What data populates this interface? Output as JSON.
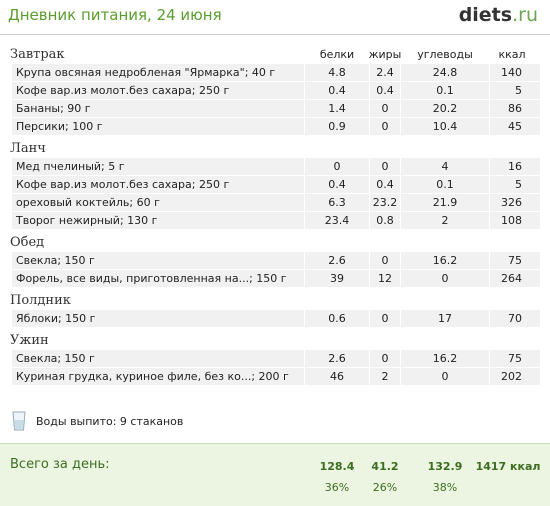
{
  "header": {
    "title": "Дневник питания, 24 июня",
    "logo_main": "diets",
    "logo_suffix": ".ru"
  },
  "columns": [
    "белки",
    "жиры",
    "углеводы",
    "ккал"
  ],
  "meals": [
    {
      "name": "Завтрак",
      "rows": [
        [
          "Крупа овсяная недробленая \"Ярмарка\"; 40 г",
          "4.8",
          "2.4",
          "24.8",
          "140"
        ],
        [
          "Кофе вар.из молот.без сахара; 250 г",
          "0.4",
          "0.4",
          "0.1",
          "5"
        ],
        [
          "Бананы; 90 г",
          "1.4",
          "0",
          "20.2",
          "86"
        ],
        [
          "Персики; 100 г",
          "0.9",
          "0",
          "10.4",
          "45"
        ]
      ]
    },
    {
      "name": "Ланч",
      "rows": [
        [
          "Мед пчелиный; 5 г",
          "0",
          "0",
          "4",
          "16"
        ],
        [
          "Кофе вар.из молот.без сахара; 250 г",
          "0.4",
          "0.4",
          "0.1",
          "5"
        ],
        [
          "ореховый коктейль; 60 г",
          "6.3",
          "23.2",
          "21.9",
          "326"
        ],
        [
          "Творог нежирный; 130 г",
          "23.4",
          "0.8",
          "2",
          "108"
        ]
      ]
    },
    {
      "name": "Обед",
      "rows": [
        [
          "Свекла; 150 г",
          "2.6",
          "0",
          "16.2",
          "75"
        ],
        [
          "Форель, все виды, приготовленная на...; 150 г",
          "39",
          "12",
          "0",
          "264"
        ]
      ]
    },
    {
      "name": "Полдник",
      "rows": [
        [
          "Яблоки; 150 г",
          "0.6",
          "0",
          "17",
          "70"
        ]
      ]
    },
    {
      "name": "Ужин",
      "rows": [
        [
          "Свекла; 150 г",
          "2.6",
          "0",
          "16.2",
          "75"
        ],
        [
          "Куриная грудка, куриное филе, без ко...; 200 г",
          "46",
          "2",
          "0",
          "202"
        ]
      ]
    }
  ],
  "water": "Воды выпито: 9 стаканов",
  "totals": {
    "label": "Всего за день:",
    "values": [
      "128.4",
      "41.2",
      "132.9",
      "1417 ккал"
    ],
    "percents": [
      "36%",
      "26%",
      "38%"
    ]
  }
}
